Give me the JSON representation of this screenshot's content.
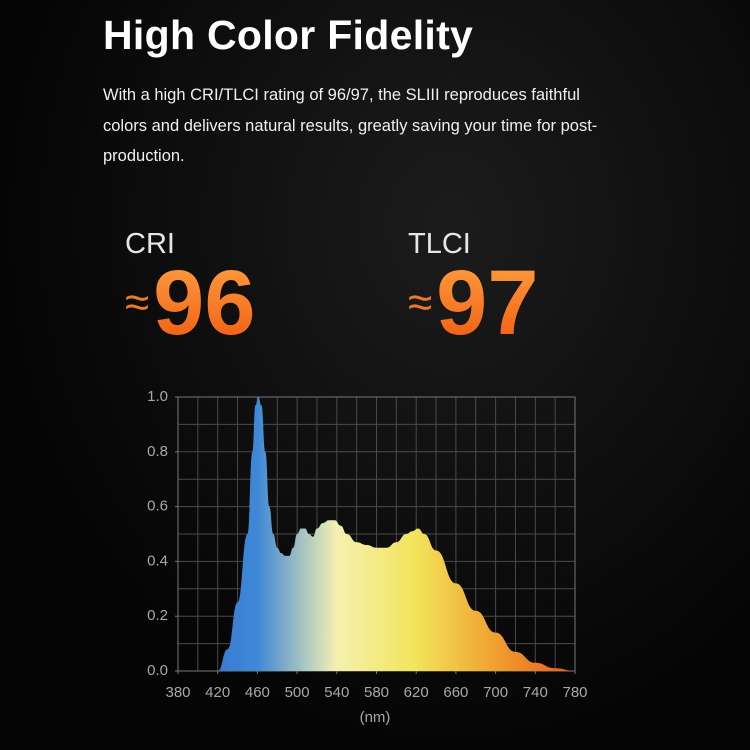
{
  "header": {
    "title": "High Color Fidelity",
    "description": "With a high CRI/TLCI rating of 96/97, the SLIII reproduces faithful colors and delivers natural results, greatly saving your time for post-production."
  },
  "metrics": [
    {
      "label": "CRI",
      "prefix": "≈",
      "value": 96
    },
    {
      "label": "TLCI",
      "prefix": "≈",
      "value": 97
    }
  ],
  "chart_data": {
    "type": "area",
    "x": [
      420,
      430,
      440,
      450,
      455,
      458,
      461,
      464,
      468,
      472,
      476,
      480,
      484,
      488,
      492,
      496,
      500,
      504,
      508,
      512,
      516,
      520,
      526,
      532,
      538,
      544,
      550,
      560,
      570,
      580,
      590,
      600,
      610,
      616,
      622,
      628,
      640,
      660,
      680,
      700,
      720,
      740,
      760,
      780
    ],
    "values": [
      0,
      0.08,
      0.25,
      0.5,
      0.8,
      0.97,
      1.0,
      0.97,
      0.8,
      0.6,
      0.5,
      0.45,
      0.43,
      0.42,
      0.42,
      0.45,
      0.5,
      0.52,
      0.52,
      0.5,
      0.49,
      0.52,
      0.54,
      0.55,
      0.55,
      0.53,
      0.5,
      0.47,
      0.46,
      0.45,
      0.45,
      0.47,
      0.5,
      0.51,
      0.52,
      0.5,
      0.44,
      0.32,
      0.22,
      0.14,
      0.07,
      0.03,
      0.01,
      0
    ],
    "colors": [
      "#2f6fd0",
      "#3f88d6",
      "#f4f1b0",
      "#f2e45a",
      "#f0a030",
      "#e8581a"
    ],
    "xlabel": "(nm)",
    "xlim": [
      380,
      780
    ],
    "ylim": [
      0,
      1
    ],
    "xticks": [
      380,
      420,
      460,
      500,
      540,
      580,
      620,
      660,
      700,
      740,
      780
    ],
    "yticks": [
      {
        "value": 0,
        "label": "0.0"
      },
      0.2,
      0.4,
      0.6,
      0.8,
      {
        "value": 1,
        "label": "1.0"
      }
    ],
    "xgrid": [
      400,
      420,
      440,
      460,
      480,
      500,
      520,
      540,
      560,
      580,
      600,
      620,
      640,
      660,
      680,
      700,
      720,
      740,
      760
    ],
    "ygrid": [
      0.1,
      0.2,
      0.3,
      0.4,
      0.5,
      0.6,
      0.7,
      0.8,
      0.9
    ],
    "grid": true
  }
}
